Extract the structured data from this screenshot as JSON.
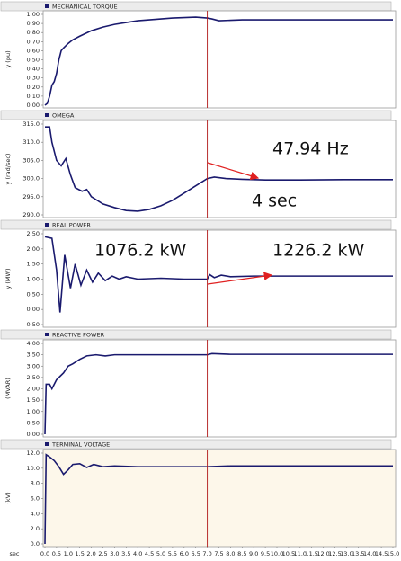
{
  "chart_data": [
    {
      "type": "line",
      "title": "MECHANICAL TORQUE",
      "ylabel": "y (pu)",
      "color": "#1a1a6e",
      "x": [
        0,
        0.1,
        0.2,
        0.3,
        0.4,
        0.5,
        0.6,
        0.7,
        0.8,
        1.0,
        1.2,
        1.5,
        2,
        2.5,
        3,
        3.5,
        4,
        4.5,
        5,
        5.5,
        6,
        6.5,
        7,
        7.2,
        7.5,
        8,
        8.5,
        9,
        10,
        11,
        12,
        13,
        14,
        15
      ],
      "values": [
        0,
        0.02,
        0.1,
        0.22,
        0.26,
        0.35,
        0.5,
        0.6,
        0.63,
        0.68,
        0.72,
        0.76,
        0.82,
        0.86,
        0.89,
        0.91,
        0.93,
        0.94,
        0.95,
        0.96,
        0.965,
        0.97,
        0.96,
        0.95,
        0.93,
        0.935,
        0.94,
        0.94,
        0.94,
        0.94,
        0.94,
        0.94,
        0.94,
        0.94
      ],
      "xlim": [
        0,
        15
      ],
      "ylim": [
        0,
        1
      ],
      "yticks": [
        {
          "value": 0,
          "label": "0.00"
        },
        {
          "value": 0.1,
          "label": "0.10"
        },
        {
          "value": 0.2,
          "label": "0.20"
        },
        {
          "value": 0.3,
          "label": "0.30"
        },
        {
          "value": 0.4,
          "label": "0.40"
        },
        {
          "value": 0.5,
          "label": "0.50"
        },
        {
          "value": 0.6,
          "label": "0.60"
        },
        {
          "value": 0.7,
          "label": "0.70"
        },
        {
          "value": 0.8,
          "label": "0.80"
        },
        {
          "value": 0.9,
          "label": "0.90"
        },
        {
          "value": 1,
          "label": "1.00"
        }
      ]
    },
    {
      "type": "line",
      "title": "OMEGA",
      "ylabel": "y (rad/sec)",
      "color": "#1a1a6e",
      "x": [
        0,
        0.2,
        0.3,
        0.5,
        0.7,
        0.9,
        1.1,
        1.3,
        1.6,
        1.8,
        2.0,
        2.5,
        3.0,
        3.5,
        4,
        4.5,
        5,
        5.5,
        6,
        6.5,
        7,
        7.3,
        7.8,
        8.5,
        9.5,
        11,
        13,
        15
      ],
      "values": [
        314.2,
        314.2,
        310,
        305,
        303.5,
        305.5,
        301,
        297.5,
        296.5,
        297,
        295,
        293,
        292,
        291.2,
        291,
        291.5,
        292.5,
        294,
        296,
        298,
        300,
        300.4,
        300,
        299.8,
        299.6,
        299.6,
        299.7,
        299.7
      ],
      "xlim": [
        0,
        15
      ],
      "ylim": [
        290,
        315
      ],
      "yticks": [
        {
          "value": 290,
          "label": "290.0"
        },
        {
          "value": 295,
          "label": "295.0"
        },
        {
          "value": 300,
          "label": "300.0"
        },
        {
          "value": 305,
          "label": "305.0"
        },
        {
          "value": 310,
          "label": "310.0"
        },
        {
          "value": 315,
          "label": "315.0"
        }
      ],
      "annotations": [
        "47.94 Hz",
        "4 sec"
      ]
    },
    {
      "type": "line",
      "title": "REAL POWER",
      "ylabel": "y (MW)",
      "color": "#1a1a6e",
      "x": [
        0,
        0.3,
        0.5,
        0.65,
        0.85,
        1.1,
        1.3,
        1.55,
        1.8,
        2.05,
        2.3,
        2.6,
        2.9,
        3.2,
        3.5,
        4,
        5,
        6,
        7,
        7.1,
        7.3,
        7.6,
        8,
        9,
        10,
        12,
        15
      ],
      "values": [
        2.4,
        2.35,
        1.3,
        -0.1,
        1.8,
        0.7,
        1.5,
        0.8,
        1.3,
        0.9,
        1.2,
        0.95,
        1.1,
        1.0,
        1.08,
        1.0,
        1.03,
        1.0,
        1.0,
        1.15,
        1.05,
        1.13,
        1.08,
        1.1,
        1.1,
        1.1,
        1.1
      ],
      "xlim": [
        0,
        15
      ],
      "ylim": [
        -0.5,
        2.5
      ],
      "yticks": [
        {
          "value": -0.5,
          "label": "-0.50"
        },
        {
          "value": 0,
          "label": "0.00"
        },
        {
          "value": 0.5,
          "label": "0.50"
        },
        {
          "value": 1,
          "label": "1.00"
        },
        {
          "value": 1.5,
          "label": "1.50"
        },
        {
          "value": 2,
          "label": "2.00"
        },
        {
          "value": 2.5,
          "label": "2.50"
        }
      ],
      "annotations": [
        "1076.2 kW",
        "1226.2 kW"
      ]
    },
    {
      "type": "line",
      "title": "REACTIVE POWER",
      "ylabel": "(MVAR)",
      "color": "#1a1a6e",
      "x": [
        0,
        0.05,
        0.2,
        0.3,
        0.5,
        0.8,
        1.0,
        1.2,
        1.5,
        1.8,
        2.2,
        2.6,
        3,
        4,
        7,
        7.2,
        8,
        15
      ],
      "values": [
        0,
        2.2,
        2.2,
        2.0,
        2.4,
        2.7,
        3.0,
        3.1,
        3.3,
        3.45,
        3.5,
        3.45,
        3.5,
        3.5,
        3.5,
        3.55,
        3.52,
        3.52
      ],
      "xlim": [
        0,
        15
      ],
      "ylim": [
        0,
        4
      ],
      "yticks": [
        {
          "value": 0,
          "label": "0.00"
        },
        {
          "value": 0.5,
          "label": "0.50"
        },
        {
          "value": 1,
          "label": "1.00"
        },
        {
          "value": 1.5,
          "label": "1.50"
        },
        {
          "value": 2,
          "label": "2.00"
        },
        {
          "value": 2.5,
          "label": "2.50"
        },
        {
          "value": 3,
          "label": "3.00"
        },
        {
          "value": 3.5,
          "label": "3.50"
        },
        {
          "value": 4,
          "label": "4.00"
        }
      ]
    },
    {
      "type": "line",
      "title": "TERMINAL VOLTAGE",
      "ylabel": "(kV)",
      "color": "#1a1a6e",
      "background": "#fdf7ea",
      "x": [
        0,
        0.05,
        0.2,
        0.4,
        0.6,
        0.8,
        1.0,
        1.2,
        1.5,
        1.8,
        2.1,
        2.5,
        3,
        4,
        7,
        8,
        15
      ],
      "values": [
        0,
        11.8,
        11.5,
        11.0,
        10.2,
        9.2,
        9.8,
        10.5,
        10.6,
        10.1,
        10.5,
        10.2,
        10.3,
        10.2,
        10.2,
        10.3,
        10.3
      ],
      "xlim": [
        0,
        15
      ],
      "ylim": [
        0,
        12
      ],
      "yticks": [
        {
          "value": 0,
          "label": "0.0"
        },
        {
          "value": 2,
          "label": "2.0"
        },
        {
          "value": 4,
          "label": "4.0"
        },
        {
          "value": 6,
          "label": "6.0"
        },
        {
          "value": 8,
          "label": "8.0"
        },
        {
          "value": 10,
          "label": "10.0"
        },
        {
          "value": 12,
          "label": "12.0"
        }
      ],
      "xlabel": "sec",
      "xticks": [
        {
          "value": 0,
          "label": "0.0"
        },
        0.5,
        {
          "value": 1,
          "label": "1.0"
        },
        1.5,
        {
          "value": 2,
          "label": "2.0"
        },
        2.5,
        {
          "value": 3,
          "label": "3.0"
        },
        3.5,
        {
          "value": 4,
          "label": "4.0"
        },
        4.5,
        {
          "value": 5,
          "label": "5.0"
        },
        5.5,
        {
          "value": 6,
          "label": "6.0"
        },
        6.5,
        {
          "value": 7,
          "label": "7.0"
        },
        7.5,
        {
          "value": 8,
          "label": "8.0"
        },
        8.5,
        {
          "value": 9,
          "label": "9.0"
        },
        9.5,
        {
          "value": 10,
          "label": "10.0"
        },
        10.5,
        {
          "value": 11,
          "label": "11.0"
        },
        11.5,
        {
          "value": 12,
          "label": "12.0"
        },
        12.5,
        {
          "value": 13,
          "label": "13.0"
        },
        13.5,
        {
          "value": 14,
          "label": "14.0"
        },
        14.5,
        {
          "value": 15,
          "label": "15.0"
        }
      ]
    }
  ],
  "cursor": {
    "x": 7,
    "color": "#b01818"
  }
}
